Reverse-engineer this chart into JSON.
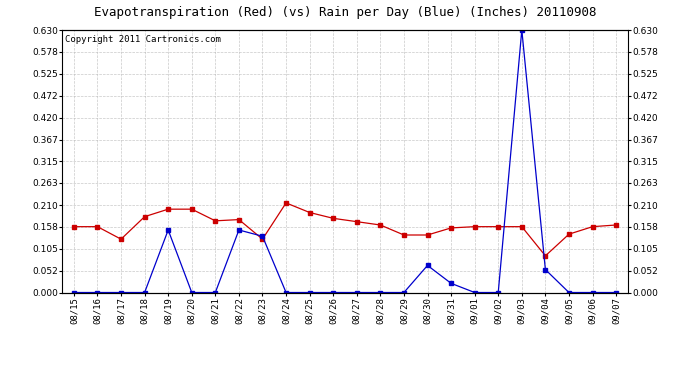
{
  "title": "Evapotranspiration (Red) (vs) Rain per Day (Blue) (Inches) 20110908",
  "copyright": "Copyright 2011 Cartronics.com",
  "dates": [
    "08/15",
    "08/16",
    "08/17",
    "08/18",
    "08/19",
    "08/20",
    "08/21",
    "08/22",
    "08/23",
    "08/24",
    "08/25",
    "08/26",
    "08/27",
    "08/28",
    "08/29",
    "08/30",
    "08/31",
    "09/01",
    "09/02",
    "09/03",
    "09/04",
    "09/05",
    "09/06",
    "09/07"
  ],
  "red_values": [
    0.158,
    0.158,
    0.128,
    0.182,
    0.2,
    0.2,
    0.172,
    0.175,
    0.128,
    0.215,
    0.192,
    0.178,
    0.17,
    0.162,
    0.138,
    0.138,
    0.155,
    0.158,
    0.158,
    0.158,
    0.088,
    0.14,
    0.158,
    0.162
  ],
  "blue_values": [
    0.0,
    0.0,
    0.0,
    0.0,
    0.15,
    0.0,
    0.0,
    0.15,
    0.135,
    0.0,
    0.0,
    0.0,
    0.0,
    0.0,
    0.0,
    0.065,
    0.022,
    0.0,
    0.0,
    0.63,
    0.055,
    0.0,
    0.0,
    0.0
  ],
  "ylim": [
    0.0,
    0.63
  ],
  "yticks": [
    0.0,
    0.052,
    0.105,
    0.158,
    0.21,
    0.263,
    0.315,
    0.367,
    0.42,
    0.472,
    0.525,
    0.578,
    0.63
  ],
  "red_color": "#cc0000",
  "blue_color": "#0000cc",
  "bg_color": "#ffffff",
  "grid_color": "#bbbbbb",
  "title_fontsize": 9,
  "copyright_fontsize": 6.5,
  "tick_fontsize": 6.5,
  "ytick_fontsize": 6.5
}
